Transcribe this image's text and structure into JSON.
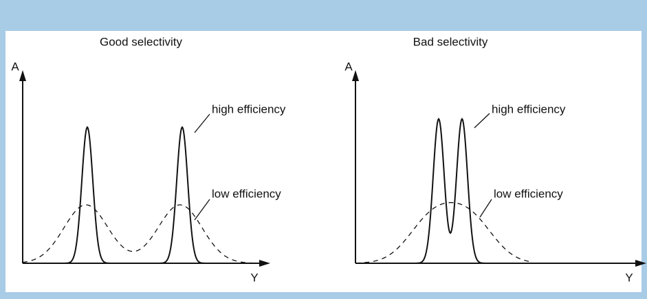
{
  "panels": [
    {
      "title": "Good selectivity",
      "y_axis": "A",
      "x_axis": "Y",
      "labels": [
        "high efficiency",
        "low efficiency"
      ]
    },
    {
      "title": "Bad selectivity",
      "y_axis": "A",
      "x_axis": "Y",
      "labels": [
        "high efficiency",
        "low efficiency"
      ]
    }
  ]
}
